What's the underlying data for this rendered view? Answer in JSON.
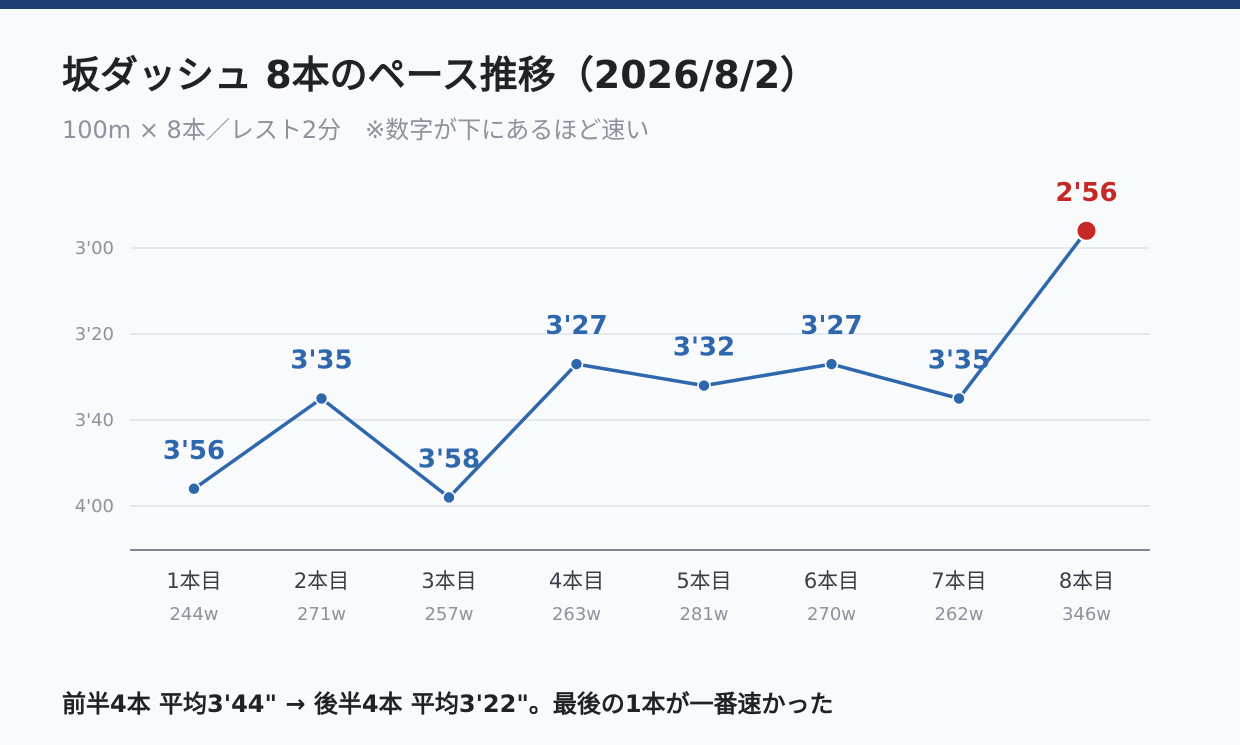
{
  "header": {
    "title": "坂ダッシュ 8本のペース推移（2026/8/2）",
    "subtitle": "100m × 8本／レスト2分　※数字が下にあるほど速い"
  },
  "footer": {
    "summary": "前半4本 平均3'44\" → 後半4本 平均3'22\"。最後の1本が一番速かった"
  },
  "colors": {
    "line": "#2f67ad",
    "highlight": "#c62828",
    "grid": "#dde3ec",
    "axis": "#8a939e",
    "topbar": "#1f3f73"
  },
  "chart_data": {
    "type": "line",
    "y_unit": "seconds",
    "y_reversed": true,
    "ylim": [
      184,
      248
    ],
    "y_ticks": [
      {
        "value": 180,
        "label": "3'00"
      },
      {
        "value": 200,
        "label": "3'20"
      },
      {
        "value": 220,
        "label": "3'40"
      },
      {
        "value": 240,
        "label": "4'00"
      }
    ],
    "categories": [
      "1本目",
      "2本目",
      "3本目",
      "4本目",
      "5本目",
      "6本目",
      "7本目",
      "8本目"
    ],
    "watts": [
      "244w",
      "271w",
      "257w",
      "263w",
      "281w",
      "270w",
      "262w",
      "346w"
    ],
    "values": [
      236,
      215,
      238,
      207,
      212,
      207,
      215,
      176
    ],
    "value_labels": [
      "3'56",
      "3'35",
      "3'58",
      "3'27",
      "3'32",
      "3'27",
      "3'35",
      "2'56"
    ],
    "highlight_index": 7,
    "grid": true
  }
}
